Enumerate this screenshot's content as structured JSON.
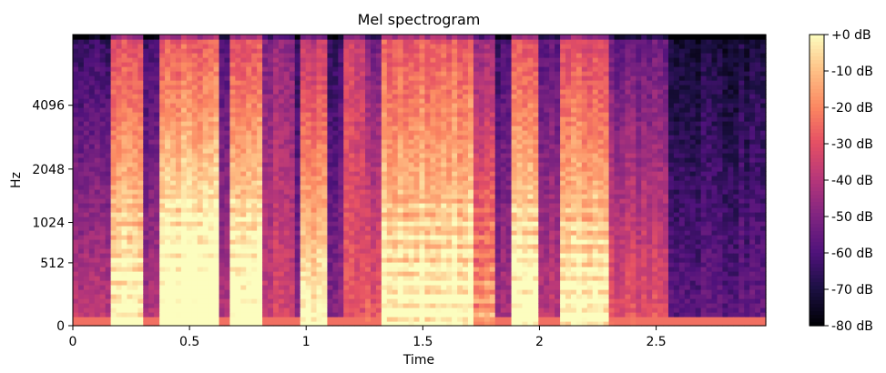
{
  "chart_data": {
    "type": "heatmap",
    "title": "Mel spectrogram",
    "xlabel": "Time",
    "ylabel": "Hz",
    "xlim": [
      0,
      2.97
    ],
    "y_scale": "mel",
    "x_ticks": [
      {
        "value": 0,
        "label": "0"
      },
      {
        "value": 0.5,
        "label": "0.5"
      },
      {
        "value": 1,
        "label": "1"
      },
      {
        "value": 1.5,
        "label": "1.5"
      },
      {
        "value": 2,
        "label": "2"
      },
      {
        "value": 2.5,
        "label": "2.5"
      }
    ],
    "y_ticks": [
      {
        "value": 0,
        "label": "0"
      },
      {
        "value": 512,
        "label": "512"
      },
      {
        "value": 1024,
        "label": "1024"
      },
      {
        "value": 2048,
        "label": "2048"
      },
      {
        "value": 4096,
        "label": "4096"
      }
    ],
    "colorbar": {
      "colormap": "magma",
      "range_db": [
        -80,
        0
      ],
      "ticks": [
        {
          "value": 0,
          "label": "+0 dB"
        },
        {
          "value": -10,
          "label": "-10 dB"
        },
        {
          "value": -20,
          "label": "-20 dB"
        },
        {
          "value": -30,
          "label": "-30 dB"
        },
        {
          "value": -40,
          "label": "-40 dB"
        },
        {
          "value": -50,
          "label": "-50 dB"
        },
        {
          "value": -60,
          "label": "-60 dB"
        },
        {
          "value": -70,
          "label": "-70 dB"
        },
        {
          "value": -80,
          "label": "-80 dB"
        }
      ]
    },
    "segments": [
      {
        "t0": 0.0,
        "t1": 0.17,
        "level": -55,
        "tilt": 18,
        "harm": 0
      },
      {
        "t0": 0.17,
        "t1": 0.3,
        "level": -22,
        "tilt": 25,
        "harm": 1
      },
      {
        "t0": 0.3,
        "t1": 0.38,
        "level": -52,
        "tilt": 12,
        "harm": 0
      },
      {
        "t0": 0.38,
        "t1": 0.62,
        "level": -18,
        "tilt": 32,
        "harm": 1
      },
      {
        "t0": 0.62,
        "t1": 0.68,
        "level": -48,
        "tilt": 10,
        "harm": 0
      },
      {
        "t0": 0.68,
        "t1": 0.82,
        "level": -20,
        "tilt": 30,
        "harm": 1
      },
      {
        "t0": 0.82,
        "t1": 0.94,
        "level": -38,
        "tilt": 4,
        "harm": 0
      },
      {
        "t0": 0.94,
        "t1": 0.98,
        "level": -55,
        "tilt": 10,
        "harm": 0
      },
      {
        "t0": 0.98,
        "t1": 1.08,
        "level": -28,
        "tilt": 30,
        "harm": 0
      },
      {
        "t0": 1.08,
        "t1": 1.15,
        "level": -55,
        "tilt": 8,
        "harm": 0
      },
      {
        "t0": 1.15,
        "t1": 1.25,
        "level": -25,
        "tilt": -6,
        "harm": 0
      },
      {
        "t0": 1.25,
        "t1": 1.32,
        "level": -42,
        "tilt": 15,
        "harm": 0
      },
      {
        "t0": 1.32,
        "t1": 1.72,
        "level": -18,
        "tilt": 22,
        "harm": 1
      },
      {
        "t0": 1.72,
        "t1": 1.8,
        "level": -35,
        "tilt": 20,
        "harm": 1
      },
      {
        "t0": 1.8,
        "t1": 1.88,
        "level": -52,
        "tilt": 10,
        "harm": 0
      },
      {
        "t0": 1.88,
        "t1": 2.0,
        "level": -20,
        "tilt": 28,
        "harm": 1
      },
      {
        "t0": 2.0,
        "t1": 2.08,
        "level": -48,
        "tilt": 10,
        "harm": 0
      },
      {
        "t0": 2.08,
        "t1": 2.3,
        "level": -22,
        "tilt": 26,
        "harm": 1
      },
      {
        "t0": 2.3,
        "t1": 2.55,
        "level": -45,
        "tilt": 16,
        "harm": 0
      },
      {
        "t0": 2.55,
        "t1": 2.97,
        "level": -62,
        "tilt": 6,
        "harm": 0
      }
    ]
  }
}
